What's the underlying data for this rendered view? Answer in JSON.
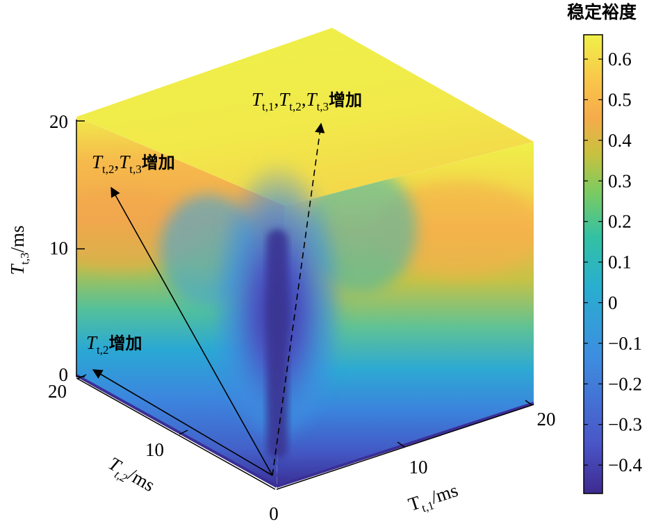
{
  "chart_data": {
    "type": "heatmap",
    "subtype": "3d-cube-surface",
    "axes": {
      "x": {
        "label_main": "T",
        "label_sub": "t,1",
        "label_unit": "/ms",
        "range": [
          0,
          20
        ],
        "ticks": [
          "0",
          "10",
          "20"
        ]
      },
      "y": {
        "label_main": "T",
        "label_sub": "t,2",
        "label_unit": "/ms",
        "range": [
          0,
          20
        ],
        "ticks": [
          "20",
          "10"
        ]
      },
      "z": {
        "label_main": "T",
        "label_sub": "t,3",
        "label_unit": "/ms",
        "range": [
          0,
          20
        ],
        "ticks": [
          "0",
          "10",
          "20"
        ]
      }
    },
    "colorbar": {
      "title": "稳定裕度",
      "range": [
        -0.47,
        0.66
      ],
      "ticks": [
        "0.6",
        "0.5",
        "0.4",
        "0.3",
        "0.2",
        "0.1",
        "0",
        "−0.1",
        "−0.2",
        "−0.3",
        "−0.4"
      ],
      "tick_values": [
        0.6,
        0.5,
        0.4,
        0.3,
        0.2,
        0.1,
        0,
        -0.1,
        -0.2,
        -0.3,
        -0.4
      ],
      "colormap": [
        "#3e2a8f",
        "#4a56c8",
        "#3d8ee0",
        "#29aecf",
        "#33c1a3",
        "#7ecb5f",
        "#c8c13f",
        "#f6ab4b",
        "#f9c64a",
        "#f0f049"
      ]
    },
    "annotations": [
      {
        "id": "a1",
        "sym1": "T",
        "sub1": "t,2",
        "rest": "",
        "cjk": "增加",
        "style": "solid"
      },
      {
        "id": "a2",
        "sym1": "T",
        "sub1": "t,2",
        "sym2": "T",
        "sub2": "t,3",
        "cjk": "增加",
        "style": "solid"
      },
      {
        "id": "a3",
        "sym1": "T",
        "sub1": "t,1",
        "sym2": "T",
        "sub2": "t,2",
        "sym3": "T",
        "sub3": "t,3",
        "cjk": "增加",
        "style": "dashed"
      }
    ],
    "surface_samples": {
      "description_values": "stability margin on the three visible faces",
      "top_face_value": 0.64,
      "left_face_bottom_value": -0.35,
      "left_face_mid_value": 0.05,
      "left_face_top_value": 0.52,
      "right_face_bottom_value": -0.38,
      "right_face_mid_value": 0.15,
      "right_face_top_value": 0.62,
      "central_trough_value": -0.44
    }
  }
}
